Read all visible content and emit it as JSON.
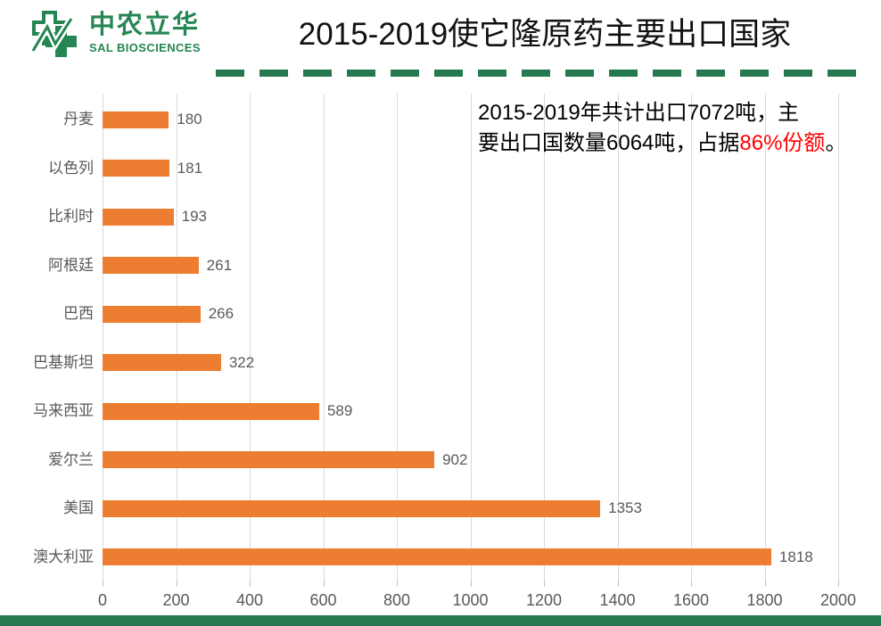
{
  "header": {
    "logo_cn": "中农立华",
    "logo_en": "SAL BIOSCIENCES",
    "title": "2015-2019使它隆原药主要出口国家",
    "brand_green": "#268653",
    "divider_green": "#26794F"
  },
  "annotation": {
    "line1": "2015-2019年共计出口7072吨，主",
    "line2_pre": "要出口国数量6064吨，占据",
    "line2_highlight": "86%份额",
    "line2_end": "。",
    "highlight_color": "#FF0000"
  },
  "chart_data": {
    "type": "bar",
    "orientation": "horizontal",
    "title": "2015-2019使它隆原药主要出口国家",
    "categories": [
      "丹麦",
      "以色列",
      "比利时",
      "阿根廷",
      "巴西",
      "巴基斯坦",
      "马来西亚",
      "爱尔兰",
      "美国",
      "澳大利亚"
    ],
    "values": [
      180,
      181,
      193,
      261,
      266,
      322,
      589,
      902,
      1353,
      1818
    ],
    "xlim": [
      0,
      2000
    ],
    "xticks": [
      0,
      200,
      400,
      600,
      800,
      1000,
      1200,
      1400,
      1600,
      1800,
      2000
    ],
    "bar_color": "#ED7D31",
    "grid": true,
    "legend": false,
    "value_labels": true
  },
  "footer": {
    "strip_color": "#26794F"
  }
}
